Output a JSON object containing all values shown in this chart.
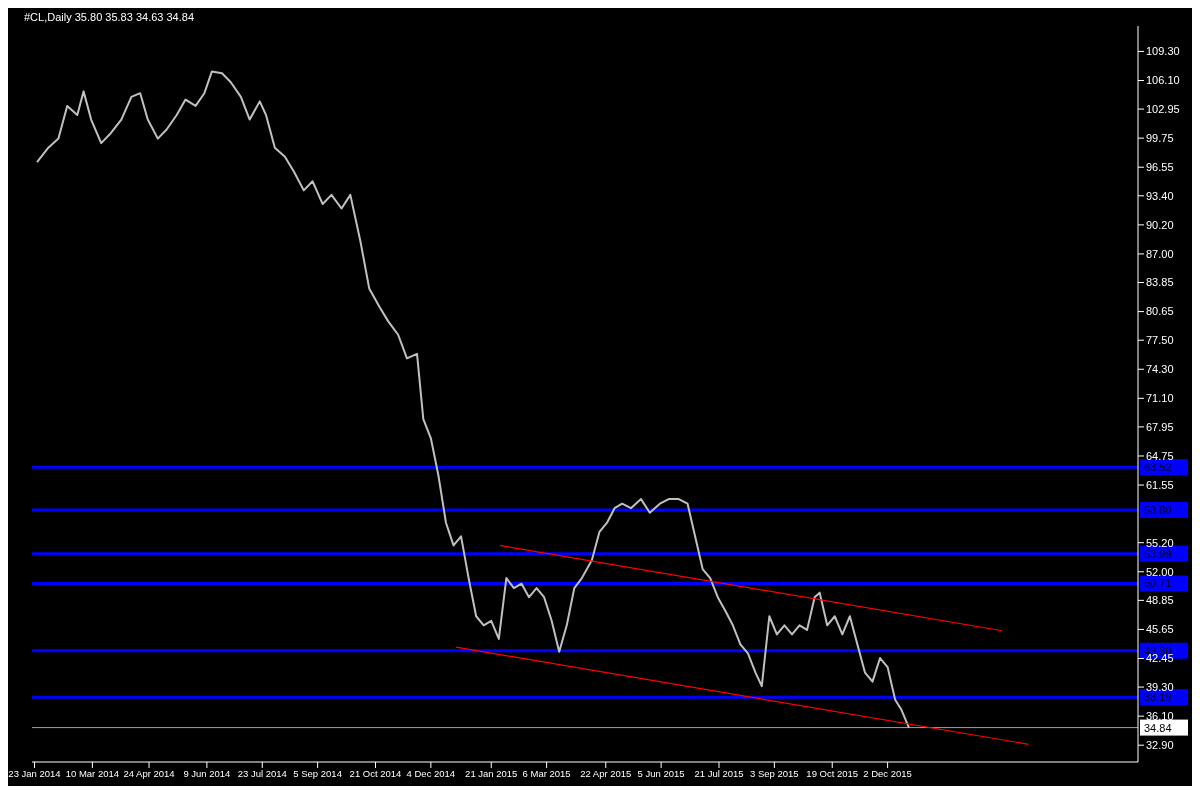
{
  "chart_data": {
    "type": "line",
    "title": "#CL,Daily  35.80 35.83 34.63 34.84",
    "xlim": [
      "2014-01-21",
      "2016-06-18"
    ],
    "xticks": [
      {
        "value": "2014-01-23",
        "label": "23 Jan 2014"
      },
      {
        "value": "2014-03-10",
        "label": "10 Mar 2014"
      },
      {
        "value": "2014-04-24",
        "label": "24 Apr 2014"
      },
      {
        "value": "2014-06-09",
        "label": "9 Jun 2014"
      },
      {
        "value": "2014-07-23",
        "label": "23 Jul 2014"
      },
      {
        "value": "2014-09-05",
        "label": "5 Sep 2014"
      },
      {
        "value": "2014-10-21",
        "label": "21 Oct 2014"
      },
      {
        "value": "2014-12-04",
        "label": "4 Dec 2014"
      },
      {
        "value": "2015-01-21",
        "label": "21 Jan 2015"
      },
      {
        "value": "2015-03-06",
        "label": "6 Mar 2015"
      },
      {
        "value": "2015-04-22",
        "label": "22 Apr 2015"
      },
      {
        "value": "2015-06-05",
        "label": "5 Jun 2015"
      },
      {
        "value": "2015-07-21",
        "label": "21 Jul 2015"
      },
      {
        "value": "2015-09-03",
        "label": "3 Sep 2015"
      },
      {
        "value": "2015-10-19",
        "label": "19 Oct 2015"
      },
      {
        "value": "2015-12-02",
        "label": "2 Dec 2015"
      }
    ],
    "ylim": [
      31.05,
      112.1
    ],
    "yticks": [
      {
        "value": 109.3,
        "label": "109.30"
      },
      {
        "value": 106.1,
        "label": "106.10"
      },
      {
        "value": 102.95,
        "label": "102.95"
      },
      {
        "value": 99.75,
        "label": "99.75"
      },
      {
        "value": 96.55,
        "label": "96.55"
      },
      {
        "value": 93.4,
        "label": "93.40"
      },
      {
        "value": 90.2,
        "label": "90.20"
      },
      {
        "value": 87,
        "label": "87.00"
      },
      {
        "value": 83.85,
        "label": "83.85"
      },
      {
        "value": 80.65,
        "label": "80.65"
      },
      {
        "value": 77.5,
        "label": "77.50"
      },
      {
        "value": 74.3,
        "label": "74.30"
      },
      {
        "value": 71.1,
        "label": "71.10"
      },
      {
        "value": 67.95,
        "label": "67.95"
      },
      {
        "value": 64.75,
        "label": "64.75"
      },
      {
        "value": 61.55,
        "label": "61.55"
      },
      {
        "value": 55.2,
        "label": "55.20"
      },
      {
        "value": 52,
        "label": "52.00"
      },
      {
        "value": 48.85,
        "label": "48.85"
      },
      {
        "value": 45.65,
        "label": "45.65"
      },
      {
        "value": 42.45,
        "label": "42.45"
      },
      {
        "value": 39.3,
        "label": "39.30"
      },
      {
        "value": 36.1,
        "label": "36.10"
      },
      {
        "value": 32.9,
        "label": "32.90"
      }
    ],
    "legend": false,
    "marker": "none",
    "line_style": "solid",
    "ref_lines": [
      {
        "axis": "y",
        "value": 63.52,
        "label": "63.52",
        "color": "#0000ff"
      },
      {
        "axis": "y",
        "value": 58.8,
        "label": "58.80",
        "color": "#0000ff"
      },
      {
        "axis": "y",
        "value": 53.99,
        "label": "53.99",
        "color": "#0000ff"
      },
      {
        "axis": "y",
        "value": 50.71,
        "label": "50.71",
        "color": "#0000ff"
      },
      {
        "axis": "y",
        "value": 43.3,
        "label": "43.30",
        "color": "#0000ff"
      },
      {
        "axis": "y",
        "value": 38.19,
        "label": "38.19",
        "color": "#0000ff"
      },
      {
        "axis": "y",
        "value": 34.84,
        "label": "34.84",
        "color": "#a0a0a0"
      }
    ],
    "series": [
      {
        "color": "#c0c0c0",
        "x": [
          "2014-01-25",
          "2014-02-03",
          "2014-02-11",
          "2014-02-18",
          "2014-02-26",
          "2014-03-03",
          "2014-03-09",
          "2014-03-17",
          "2014-03-24",
          "2014-04-02",
          "2014-04-10",
          "2014-04-17",
          "2014-04-23",
          "2014-05-01",
          "2014-05-08",
          "2014-05-16",
          "2014-05-23",
          "2014-05-31",
          "2014-06-07",
          "2014-06-13",
          "2014-06-21",
          "2014-06-28",
          "2014-07-06",
          "2014-07-13",
          "2014-07-21",
          "2014-07-26",
          "2014-08-02",
          "2014-08-10",
          "2014-08-17",
          "2014-08-25",
          "2014-09-01",
          "2014-09-09",
          "2014-09-16",
          "2014-09-24",
          "2014-10-01",
          "2014-10-09",
          "2014-10-16",
          "2014-10-24",
          "2014-10-31",
          "2014-11-08",
          "2014-11-15",
          "2014-11-23",
          "2014-11-28",
          "2014-12-04",
          "2014-12-10",
          "2014-12-16",
          "2014-12-22",
          "2014-12-28",
          "2015-01-03",
          "2015-01-09",
          "2015-01-15",
          "2015-01-21",
          "2015-01-27",
          "2015-02-02",
          "2015-02-08",
          "2015-02-14",
          "2015-02-20",
          "2015-02-26",
          "2015-03-04",
          "2015-03-10",
          "2015-03-16",
          "2015-03-22",
          "2015-03-28",
          "2015-04-03",
          "2015-04-11",
          "2015-04-17",
          "2015-04-23",
          "2015-04-29",
          "2015-05-05",
          "2015-05-12",
          "2015-05-20",
          "2015-05-27",
          "2015-06-04",
          "2015-06-11",
          "2015-06-19",
          "2015-06-26",
          "2015-07-02",
          "2015-07-08",
          "2015-07-14",
          "2015-07-20",
          "2015-07-26",
          "2015-08-01",
          "2015-08-07",
          "2015-08-13",
          "2015-08-19",
          "2015-08-24",
          "2015-08-30",
          "2015-09-05",
          "2015-09-11",
          "2015-09-17",
          "2015-09-23",
          "2015-09-29",
          "2015-10-05",
          "2015-10-09",
          "2015-10-15",
          "2015-10-21",
          "2015-10-27",
          "2015-11-02",
          "2015-11-08",
          "2015-11-14",
          "2015-11-20",
          "2015-11-26",
          "2015-12-02",
          "2015-12-08",
          "2015-12-13",
          "2015-12-19"
        ],
        "values": [
          97.1,
          98.7,
          99.7,
          103.3,
          102.3,
          104.9,
          101.8,
          99.2,
          100.2,
          101.8,
          104.3,
          104.7,
          101.8,
          99.7,
          100.7,
          102.3,
          104.0,
          103.3,
          104.7,
          107.1,
          106.9,
          105.9,
          104.3,
          101.8,
          103.8,
          102.3,
          98.7,
          97.7,
          96.1,
          94.0,
          95.0,
          92.5,
          93.5,
          92.0,
          93.5,
          88.4,
          83.2,
          81.2,
          79.6,
          78.1,
          75.5,
          76.0,
          68.8,
          66.7,
          62.6,
          57.4,
          54.9,
          55.9,
          51.3,
          47.1,
          46.1,
          46.6,
          44.6,
          51.3,
          50.2,
          50.7,
          49.2,
          50.2,
          49.2,
          46.6,
          43.2,
          46.1,
          50.2,
          51.3,
          53.3,
          56.4,
          57.4,
          59.0,
          59.5,
          59.0,
          60.0,
          58.5,
          59.5,
          60.0,
          60.0,
          59.5,
          55.9,
          52.3,
          51.3,
          49.2,
          47.7,
          46.1,
          44.0,
          43.0,
          40.9,
          39.4,
          47.1,
          45.1,
          46.1,
          45.1,
          46.1,
          45.6,
          49.2,
          49.7,
          46.1,
          47.1,
          45.1,
          47.1,
          44.0,
          40.9,
          39.9,
          42.5,
          41.5,
          37.9,
          36.8,
          34.8
        ]
      },
      {
        "type": "line",
        "color": "#ff0000",
        "x": [
          "2015-01-28",
          "2016-03-02"
        ],
        "values": [
          54.9,
          45.5
        ]
      },
      {
        "type": "line",
        "color": "#ff0000",
        "x": [
          "2014-12-24",
          "2016-03-23"
        ],
        "values": [
          43.7,
          33.0
        ]
      }
    ]
  }
}
